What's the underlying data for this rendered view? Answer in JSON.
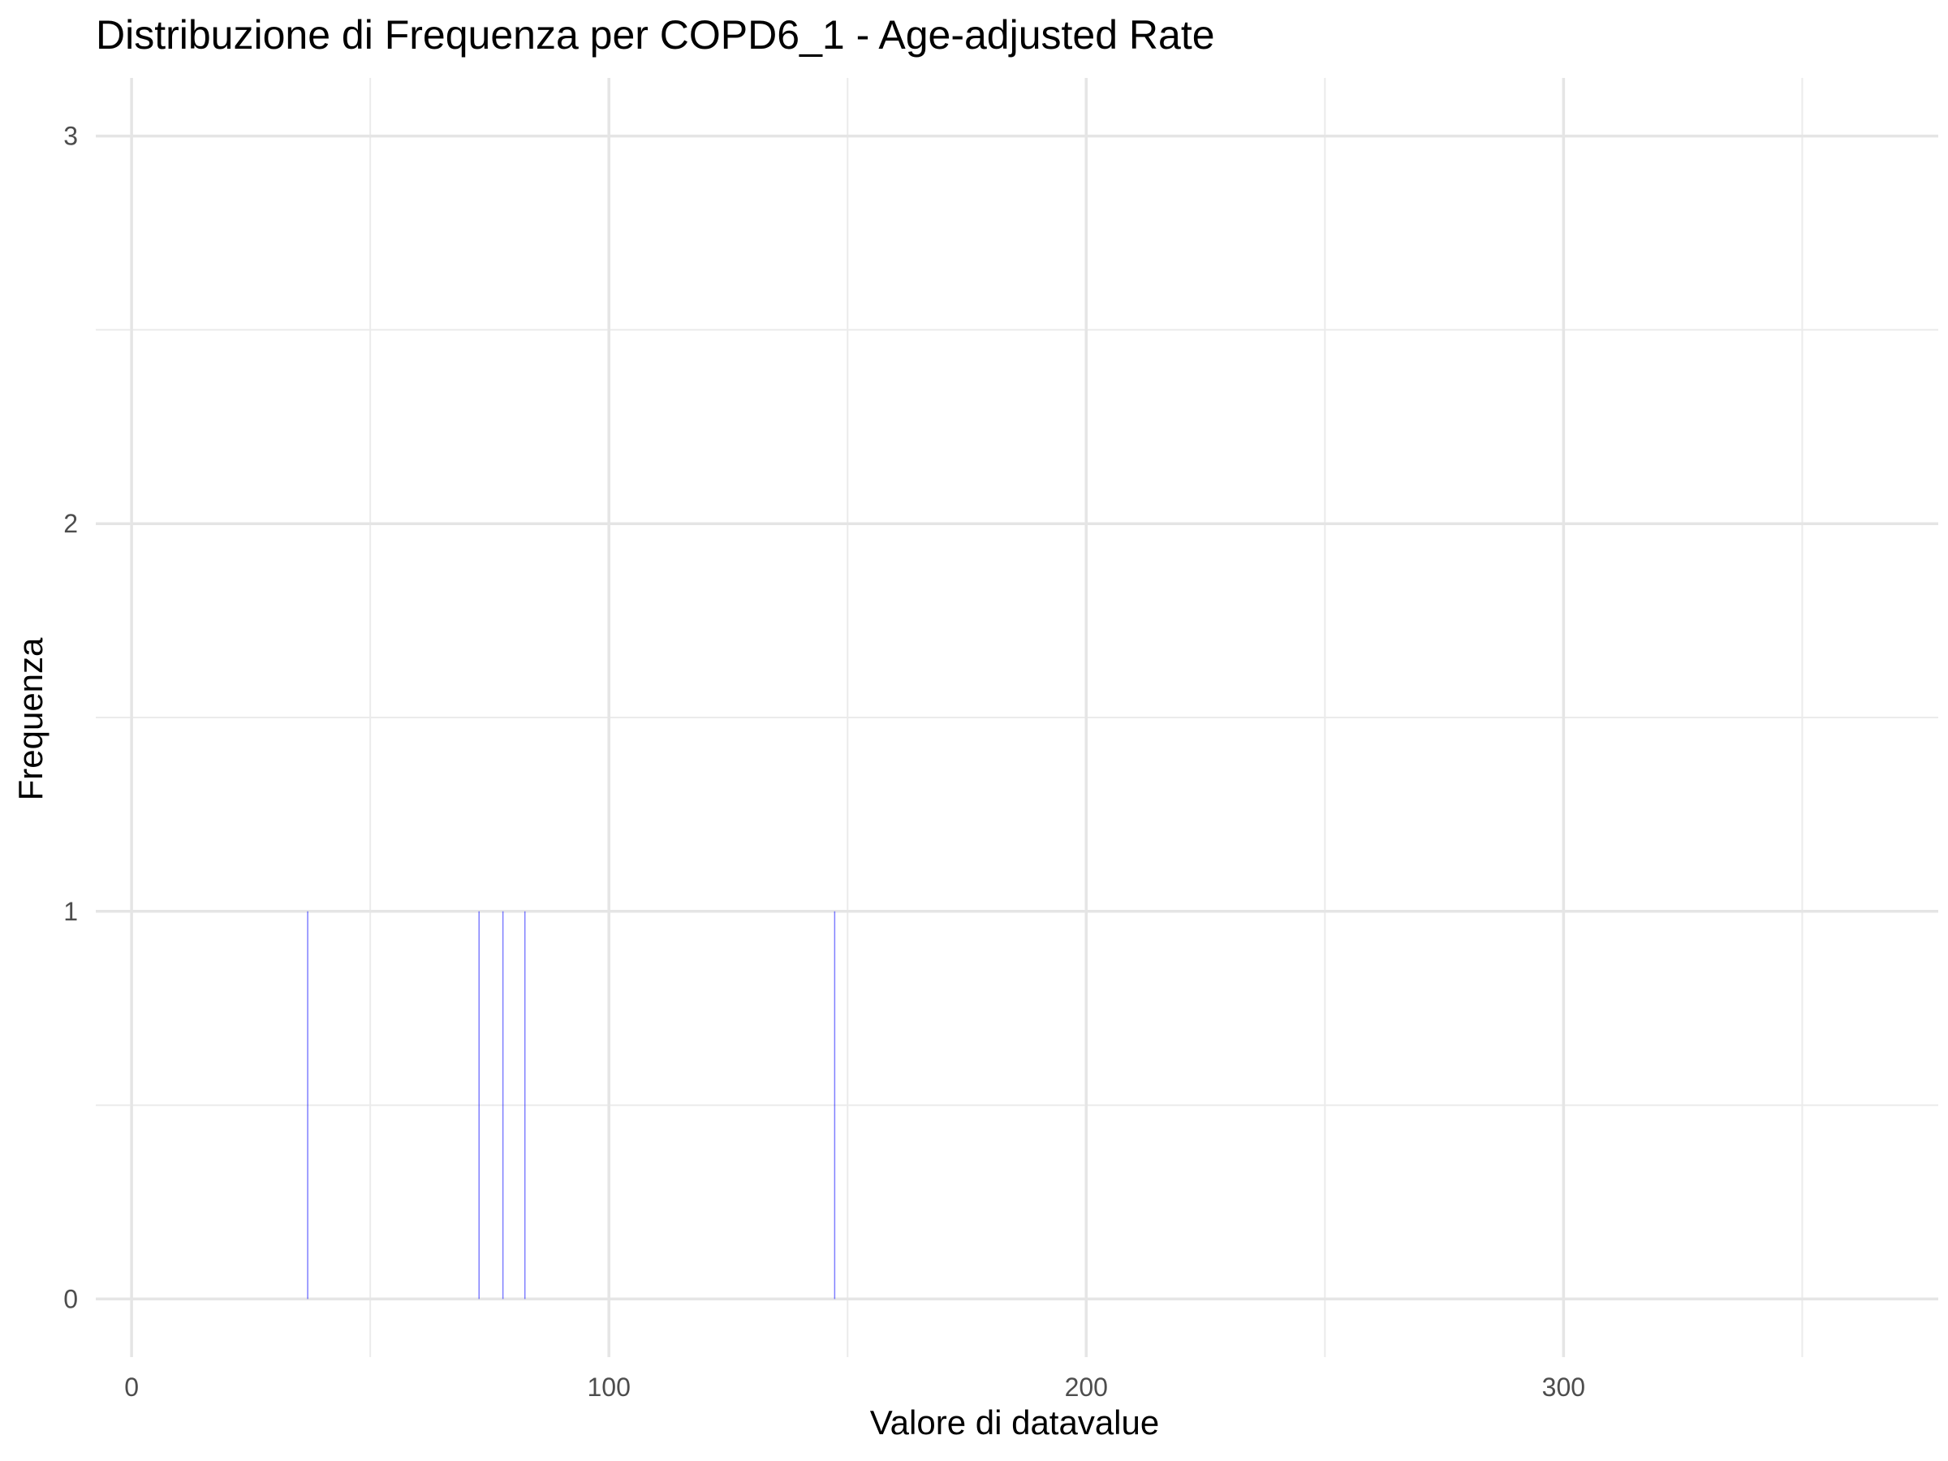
{
  "chart_data": {
    "type": "bar",
    "title": "Distribuzione di Frequenza per COPD6_1 - Age-adjusted Rate",
    "xlabel": "Valore di datavalue",
    "ylabel": "Frequenza",
    "xlim": [
      -7.5,
      378.5
    ],
    "ylim": [
      -0.15,
      3.15
    ],
    "x_ticks": [
      0,
      100,
      200,
      300
    ],
    "x_minor_ticks": [
      50,
      150,
      250,
      350
    ],
    "y_ticks": [
      0,
      1,
      2,
      3
    ],
    "y_minor_ticks": [
      0.5,
      1.5,
      2.5
    ],
    "grid": true,
    "bar_color": "#0000ff",
    "bar_opacity": 0.5,
    "bin_width": 0.1,
    "series": [
      {
        "values": [
          {
            "x": 36.9,
            "y": 1
          },
          {
            "x": 72.8,
            "y": 1
          },
          {
            "x": 77.8,
            "y": 1
          },
          {
            "x": 82.4,
            "y": 1
          },
          {
            "x": 147.3,
            "y": 1
          }
        ]
      }
    ]
  }
}
